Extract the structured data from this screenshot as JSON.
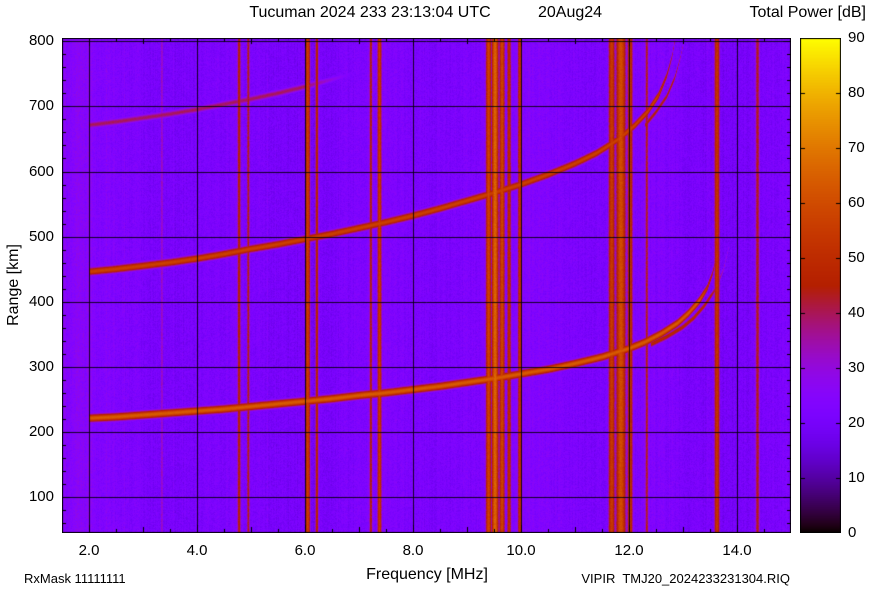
{
  "header": {
    "title": "Tucuman 2024 233 23:13:04 UTC",
    "date": "20Aug24",
    "colorbar_title": "Total Power [dB]"
  },
  "footer": {
    "rx_mask": "RxMask 11111111",
    "x_axis_label": "Frequency [MHz]",
    "file_name": "VIPIR  TMJ20_2024233231304.RIQ"
  },
  "chart_data": {
    "type": "heatmap",
    "title": "Tucuman 2024 233 23:13:04 UTC  20Aug24",
    "xlabel": "Frequency [MHz]",
    "ylabel": "Range [km]",
    "colorbar_label": "Total Power [dB]",
    "x_unit": "MHz",
    "y_unit": "km",
    "z_unit": "dB",
    "xlim": [
      1.5,
      15.0
    ],
    "ylim": [
      45,
      805
    ],
    "zlim": [
      0,
      90
    ],
    "x_major_ticks": [
      2,
      4,
      6,
      8,
      10,
      12,
      14
    ],
    "x_tick_labels": [
      "2.0",
      "4.0",
      "6.0",
      "8.0",
      "10.0",
      "12.0",
      "14.0"
    ],
    "x_minor_step": 0.5,
    "y_major_ticks": [
      100,
      200,
      300,
      400,
      500,
      600,
      700,
      800
    ],
    "y_minor_step": 20,
    "z_ticks": [
      0,
      10,
      20,
      30,
      40,
      50,
      60,
      70,
      80,
      90
    ],
    "grid": true,
    "palette": {
      "name": "gnuplot-pm3d",
      "description": "black -> dark purple -> violet -> magenta -> red -> orange -> yellow",
      "stops": [
        {
          "db": 0,
          "color": "#000000"
        },
        {
          "db": 12,
          "color": "#33014f"
        },
        {
          "db": 22,
          "color": "#7b04fe"
        },
        {
          "db": 36,
          "color": "#9d11a0"
        },
        {
          "db": 45,
          "color": "#b42000"
        },
        {
          "db": 60,
          "color": "#d04b00"
        },
        {
          "db": 75,
          "color": "#e09a00"
        },
        {
          "db": 90,
          "color": "#ffff00"
        }
      ]
    },
    "noise": {
      "base_db": 21.5,
      "column_variation_db": 3,
      "pixel_variation_db": 3,
      "left_edge_boost_db": 2.0,
      "left_edge_max_freq": 2.05
    },
    "rfi_stripes": [
      {
        "freq_mhz": 3.35,
        "sigma_mhz": 0.03,
        "db": 33
      },
      {
        "freq_mhz": 4.78,
        "sigma_mhz": 0.035,
        "db": 46
      },
      {
        "freq_mhz": 4.95,
        "sigma_mhz": 0.03,
        "db": 44
      },
      {
        "freq_mhz": 6.05,
        "sigma_mhz": 0.045,
        "db": 56
      },
      {
        "freq_mhz": 6.22,
        "sigma_mhz": 0.03,
        "db": 48
      },
      {
        "freq_mhz": 7.22,
        "sigma_mhz": 0.03,
        "db": 46
      },
      {
        "freq_mhz": 7.38,
        "sigma_mhz": 0.04,
        "db": 55
      },
      {
        "freq_mhz": 9.4,
        "sigma_mhz": 0.05,
        "db": 58
      },
      {
        "freq_mhz": 9.52,
        "sigma_mhz": 0.06,
        "db": 66
      },
      {
        "freq_mhz": 9.65,
        "sigma_mhz": 0.05,
        "db": 58
      },
      {
        "freq_mhz": 9.78,
        "sigma_mhz": 0.04,
        "db": 50
      },
      {
        "freq_mhz": 9.98,
        "sigma_mhz": 0.04,
        "db": 52
      },
      {
        "freq_mhz": 11.68,
        "sigma_mhz": 0.06,
        "db": 55
      },
      {
        "freq_mhz": 11.85,
        "sigma_mhz": 0.09,
        "db": 60
      },
      {
        "freq_mhz": 12.02,
        "sigma_mhz": 0.05,
        "db": 54
      },
      {
        "freq_mhz": 12.33,
        "sigma_mhz": 0.03,
        "db": 44
      },
      {
        "freq_mhz": 13.63,
        "sigma_mhz": 0.05,
        "db": 53
      },
      {
        "freq_mhz": 14.38,
        "sigma_mhz": 0.04,
        "db": 44
      }
    ],
    "traces": [
      {
        "name": "F-layer O-mode 1st hop",
        "db": 64,
        "sigma_km": 5.5,
        "fade": [
          13.3,
          13.7,
          0.5
        ],
        "points": [
          [
            2.0,
            222
          ],
          [
            2.5,
            224
          ],
          [
            3.0,
            227
          ],
          [
            3.5,
            230
          ],
          [
            4.0,
            233
          ],
          [
            4.5,
            236
          ],
          [
            5.0,
            240
          ],
          [
            5.5,
            244
          ],
          [
            6.0,
            248
          ],
          [
            6.5,
            252
          ],
          [
            7.0,
            257
          ],
          [
            7.5,
            261
          ],
          [
            8.0,
            266
          ],
          [
            8.5,
            271
          ],
          [
            9.0,
            277
          ],
          [
            9.5,
            283
          ],
          [
            10.0,
            290
          ],
          [
            10.5,
            297
          ],
          [
            11.0,
            306
          ],
          [
            11.5,
            316
          ],
          [
            12.0,
            329
          ],
          [
            12.3,
            339
          ],
          [
            12.6,
            352
          ],
          [
            12.9,
            368
          ],
          [
            13.1,
            383
          ],
          [
            13.3,
            402
          ],
          [
            13.45,
            422
          ],
          [
            13.55,
            445
          ],
          [
            13.62,
            470
          ],
          [
            13.68,
            500
          ]
        ]
      },
      {
        "name": "F-layer X-mode 1st hop",
        "db": 48,
        "sigma_km": 4.5,
        "fade": [
          13.5,
          13.9,
          0.5
        ],
        "points": [
          [
            12.4,
            335
          ],
          [
            12.7,
            347
          ],
          [
            13.0,
            362
          ],
          [
            13.2,
            376
          ],
          [
            13.4,
            395
          ],
          [
            13.6,
            420
          ],
          [
            13.75,
            450
          ],
          [
            13.85,
            485
          ]
        ]
      },
      {
        "name": "F-layer 2nd hop",
        "db": 57,
        "sigma_km": 5.5,
        "fade": [
          12.5,
          12.9,
          0.6
        ],
        "points": [
          [
            2.0,
            447
          ],
          [
            2.5,
            451
          ],
          [
            3.0,
            456
          ],
          [
            3.5,
            461
          ],
          [
            4.0,
            467
          ],
          [
            4.5,
            474
          ],
          [
            5.0,
            482
          ],
          [
            5.5,
            489
          ],
          [
            6.0,
            497
          ],
          [
            6.5,
            505
          ],
          [
            7.0,
            514
          ],
          [
            7.5,
            523
          ],
          [
            8.0,
            533
          ],
          [
            8.5,
            544
          ],
          [
            9.0,
            556
          ],
          [
            9.5,
            568
          ],
          [
            10.0,
            581
          ],
          [
            10.5,
            596
          ],
          [
            11.0,
            613
          ],
          [
            11.4,
            629
          ],
          [
            11.8,
            650
          ],
          [
            12.1,
            671
          ],
          [
            12.35,
            693
          ],
          [
            12.55,
            718
          ],
          [
            12.7,
            748
          ],
          [
            12.8,
            778
          ],
          [
            12.85,
            802
          ]
        ]
      },
      {
        "name": "F-layer X-mode 2nd hop",
        "db": 46,
        "sigma_km": 4.5,
        "fade": [
          12.8,
          13.1,
          0.6
        ],
        "points": [
          [
            12.3,
            672
          ],
          [
            12.5,
            692
          ],
          [
            12.7,
            716
          ],
          [
            12.85,
            745
          ],
          [
            12.95,
            775
          ],
          [
            13.02,
            802
          ]
        ]
      },
      {
        "name": "F-layer 3rd hop",
        "db": 40,
        "sigma_km": 5.0,
        "fade": [
          6.0,
          7.6,
          0.15
        ],
        "points": [
          [
            2.0,
            672
          ],
          [
            2.5,
            677
          ],
          [
            3.0,
            683
          ],
          [
            3.5,
            689
          ],
          [
            4.0,
            696
          ],
          [
            4.5,
            704
          ],
          [
            5.0,
            712
          ],
          [
            5.5,
            721
          ],
          [
            6.0,
            731
          ],
          [
            6.5,
            742
          ],
          [
            7.0,
            754
          ],
          [
            7.5,
            766
          ]
        ]
      }
    ]
  }
}
